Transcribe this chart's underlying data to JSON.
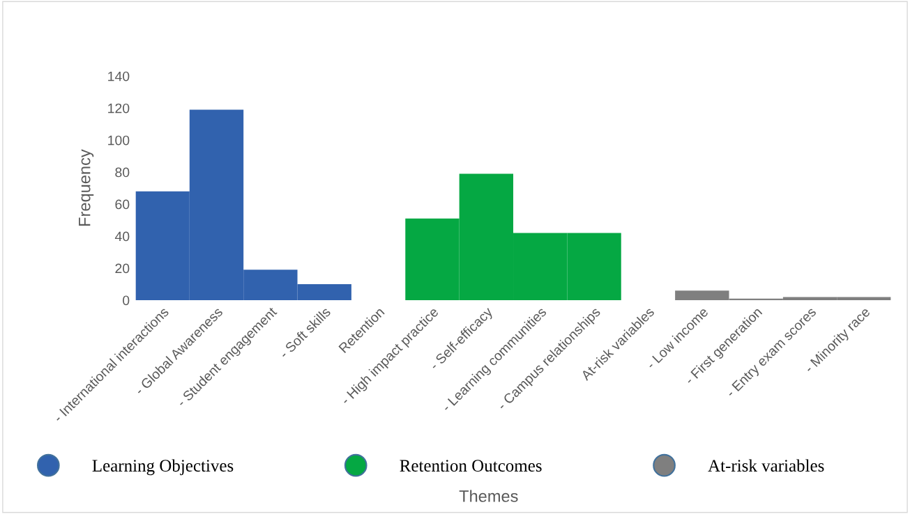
{
  "chart_data": {
    "type": "bar",
    "xlabel": "Themes",
    "ylabel": "Frequency",
    "categories": [
      "- International interactions",
      "- Global Awareness",
      "- Student engagement",
      "- Soft skills",
      "Retention",
      "- High impact practice",
      "- Self-efficacy",
      "- Learning communities",
      "- Campus relationships",
      "At-risk variables",
      "- Low income",
      "- First generation",
      "- Entry exam scores",
      "- Minority race"
    ],
    "series": [
      {
        "name": "Learning Objectives",
        "color": "#3162ae",
        "values": [
          68,
          119,
          19,
          10,
          null,
          null,
          null,
          null,
          null,
          null,
          null,
          null,
          null,
          null
        ]
      },
      {
        "name": "Retention Outcomes",
        "color": "#05a843",
        "values": [
          null,
          null,
          null,
          null,
          null,
          51,
          79,
          42,
          42,
          null,
          null,
          null,
          null,
          null
        ]
      },
      {
        "name": "At-risk variables",
        "color": "#7f7f7f",
        "values": [
          null,
          null,
          null,
          null,
          null,
          null,
          null,
          null,
          null,
          null,
          6,
          1,
          2,
          2
        ]
      }
    ],
    "ylim": [
      0,
      140
    ],
    "yticks": [
      0,
      20,
      40,
      60,
      80,
      100,
      120,
      140
    ],
    "grid": false,
    "legend": "bottom",
    "marker": "circle"
  }
}
